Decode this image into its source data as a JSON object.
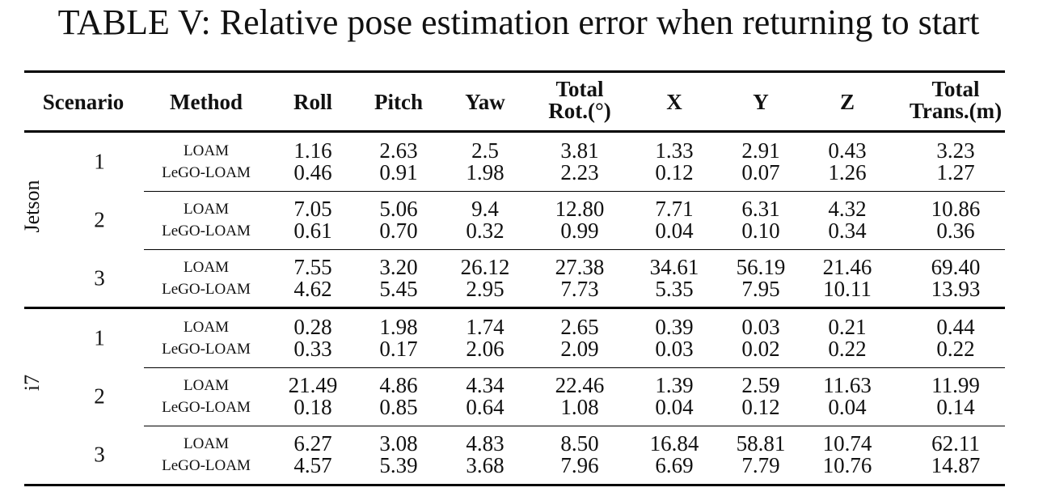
{
  "title": "TABLE V: Relative pose estimation error when returning to start",
  "headers": {
    "scenario": "Scenario",
    "method": "Method",
    "roll": "Roll",
    "pitch": "Pitch",
    "yaw": "Yaw",
    "total_rot_1": "Total",
    "total_rot_2": "Rot.(°)",
    "x": "X",
    "y": "Y",
    "z": "Z",
    "total_trans_1": "Total",
    "total_trans_2": "Trans.(m)"
  },
  "groups": [
    {
      "name": "Jetson",
      "scenarios": [
        {
          "id": "1",
          "rows": [
            {
              "method": "LOAM",
              "values": [
                "1.16",
                "2.63",
                "2.5",
                "3.81",
                "1.33",
                "2.91",
                "0.43",
                "3.23"
              ]
            },
            {
              "method": "LeGO-LOAM",
              "values": [
                "0.46",
                "0.91",
                "1.98",
                "2.23",
                "0.12",
                "0.07",
                "1.26",
                "1.27"
              ]
            }
          ]
        },
        {
          "id": "2",
          "rows": [
            {
              "method": "LOAM",
              "values": [
                "7.05",
                "5.06",
                "9.4",
                "12.80",
                "7.71",
                "6.31",
                "4.32",
                "10.86"
              ]
            },
            {
              "method": "LeGO-LOAM",
              "values": [
                "0.61",
                "0.70",
                "0.32",
                "0.99",
                "0.04",
                "0.10",
                "0.34",
                "0.36"
              ]
            }
          ]
        },
        {
          "id": "3",
          "rows": [
            {
              "method": "LOAM",
              "values": [
                "7.55",
                "3.20",
                "26.12",
                "27.38",
                "34.61",
                "56.19",
                "21.46",
                "69.40"
              ]
            },
            {
              "method": "LeGO-LOAM",
              "values": [
                "4.62",
                "5.45",
                "2.95",
                "7.73",
                "5.35",
                "7.95",
                "10.11",
                "13.93"
              ]
            }
          ]
        }
      ]
    },
    {
      "name": "i7",
      "scenarios": [
        {
          "id": "1",
          "rows": [
            {
              "method": "LOAM",
              "values": [
                "0.28",
                "1.98",
                "1.74",
                "2.65",
                "0.39",
                "0.03",
                "0.21",
                "0.44"
              ]
            },
            {
              "method": "LeGO-LOAM",
              "values": [
                "0.33",
                "0.17",
                "2.06",
                "2.09",
                "0.03",
                "0.02",
                "0.22",
                "0.22"
              ]
            }
          ]
        },
        {
          "id": "2",
          "rows": [
            {
              "method": "LOAM",
              "values": [
                "21.49",
                "4.86",
                "4.34",
                "22.46",
                "1.39",
                "2.59",
                "11.63",
                "11.99"
              ]
            },
            {
              "method": "LeGO-LOAM",
              "values": [
                "0.18",
                "0.85",
                "0.64",
                "1.08",
                "0.04",
                "0.12",
                "0.04",
                "0.14"
              ]
            }
          ]
        },
        {
          "id": "3",
          "rows": [
            {
              "method": "LOAM",
              "values": [
                "6.27",
                "3.08",
                "4.83",
                "8.50",
                "16.84",
                "58.81",
                "10.74",
                "62.11"
              ]
            },
            {
              "method": "LeGO-LOAM",
              "values": [
                "4.57",
                "5.39",
                "3.68",
                "7.96",
                "6.69",
                "7.79",
                "10.76",
                "14.87"
              ]
            }
          ]
        }
      ]
    }
  ]
}
